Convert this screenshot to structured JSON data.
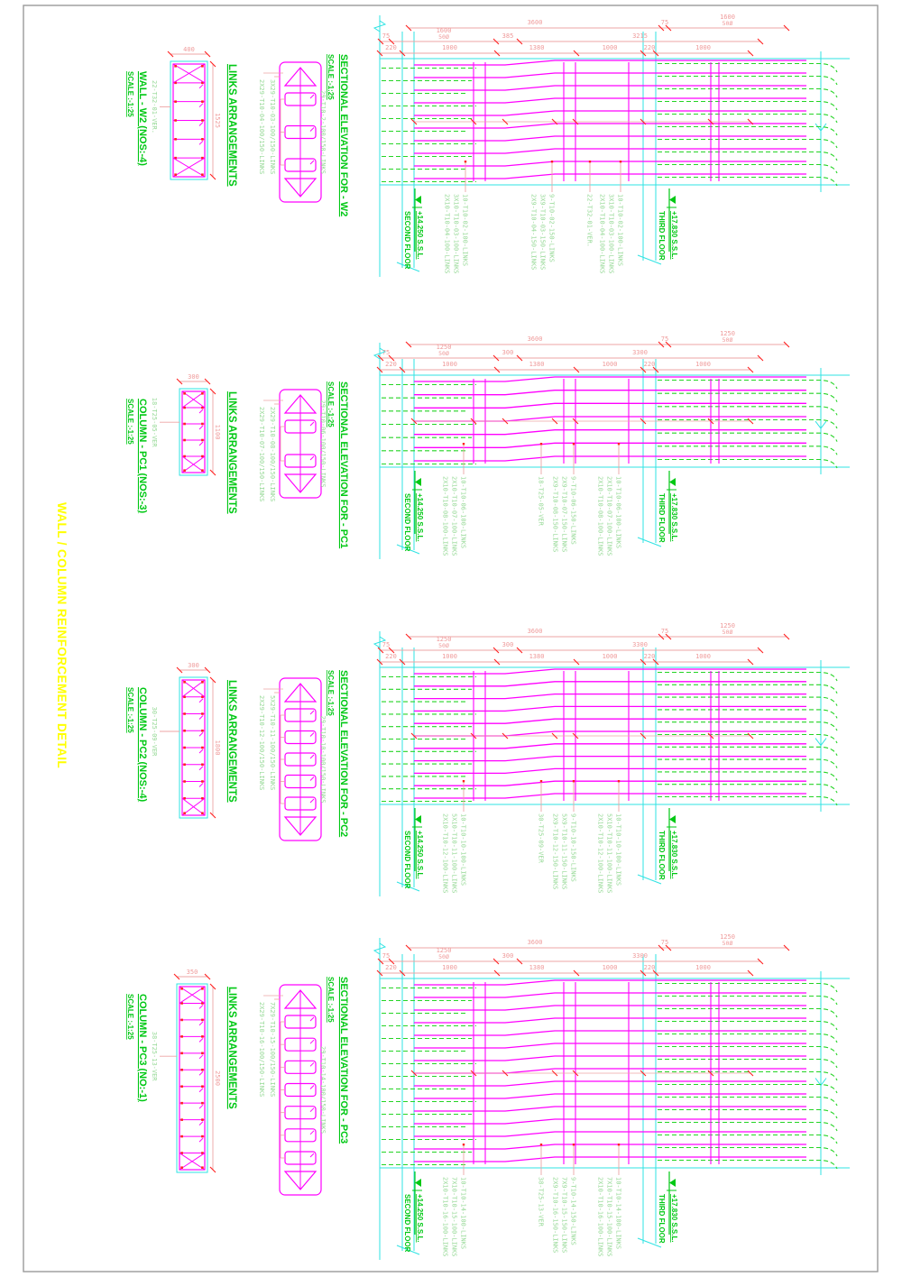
{
  "drawing_title": "WALL / COLUMN REINFORCEMENT DETAIL",
  "colors": {
    "magenta": "#ff00ff",
    "cyan": "#2fe3e3",
    "green_title": "#00c814",
    "green_pale": "#96d996",
    "green_dash": "#25d425",
    "red": "#ff2020",
    "red_pale": "#eda4a4",
    "dim_text": "#ef9a9a",
    "yellow": "#ffff00",
    "border": "#9a9a9a"
  },
  "floor_markers": {
    "lower": {
      "level": "+14.250 S.S.L.",
      "name": "SECOND FLOOR"
    },
    "upper": {
      "level": "+17.830 S.S.L.",
      "name": "THIRD FLOOR"
    }
  },
  "sections": [
    {
      "id": "w2",
      "title": "WALL - W2  (NOS:-4)",
      "scale": "SCALE :-1:25",
      "elevation_title": "SECTIONAL ELEVATION FOR - W2",
      "links_title": "LINKS ARRANGEMENTS",
      "cross_section": {
        "width": "400",
        "length": "1525",
        "ver_label": "22-T32-01-VER.",
        "cells": 6
      },
      "links": {
        "main_label": "29-T10-2-100/150-LINKS",
        "mid_label": "3X29-T10-03-100/150-LINKS",
        "end_label": "2X29-T10-04-100/150-LINKS"
      },
      "dims": {
        "row_a": [
          "3600",
          "75",
          "1600 50Ø"
        ],
        "row_b": [
          "75",
          "1600 50Ø",
          "385",
          "3215"
        ],
        "row_c": [
          "220",
          "1000",
          "1380",
          "1000",
          "220",
          "1000"
        ]
      },
      "annotations": [
        {
          "lines": [
            "10-T10-02-100-LINKS",
            "3X10-T10-03-100-LINKS",
            "2X10-T10-04-100-LINKS"
          ]
        },
        {
          "lines": [
            "9-T10-02-150-LINKS",
            "3X9-T10-03-150-LINKS",
            "2X9-T10-04-150-LINKS"
          ]
        },
        {
          "lines": [
            "22-T32-01-VER."
          ]
        },
        {
          "lines": [
            "10-T10-02-100-LINKS",
            "3X10-T10-03-100-LINKS",
            "2X10-T10-04-100-LINKS"
          ]
        }
      ]
    },
    {
      "id": "pc1",
      "title": "COLUMN - PC1  (NOS:-3)",
      "scale": "SCALE :-1:25",
      "elevation_title": "SECTIONAL ELEVATION FOR - PC1",
      "links_title": "LINKS ARRANGEMENTS",
      "cross_section": {
        "width": "300",
        "length": "1100",
        "ver_label": "18-T25-05-VER",
        "cells": 5
      },
      "links": {
        "main_label": "29-T10-06-100/150-LINKS",
        "mid_label": "2X29-T10-08-100/150-LINKS",
        "end_label": "2X29-T10-07-100/150-LINKS"
      },
      "dims": {
        "row_a": [
          "3600",
          "75",
          "1250 50Ø"
        ],
        "row_b": [
          "75",
          "1250 50Ø",
          "300",
          "3300"
        ],
        "row_c": [
          "220",
          "1000",
          "1380",
          "1000",
          "220",
          "1000"
        ]
      },
      "annotations": [
        {
          "lines": [
            "10-T10-06-100-LINKS",
            "2X10-T10-07-100-LINKS",
            "2X10-T10-08-100-LINKS"
          ]
        },
        {
          "lines": [
            "18-T25-05-VER"
          ]
        },
        {
          "lines": [
            "9-T10-06-150-LINKS",
            "2X9-T10-07-150-LINKS",
            "2X9-T10-08-150-LINKS"
          ]
        },
        {
          "lines": [
            "10-T10-06-100-LINKS",
            "2X10-T10-07-100-LINKS",
            "2X10-T10-08-100-LINKS"
          ]
        }
      ]
    },
    {
      "id": "pc2",
      "title": "COLUMN - PC2  (NOS:-4)",
      "scale": "SCALE :-1:25",
      "elevation_title": "SECTIONAL ELEVATION FOR - PC2",
      "links_title": "LINKS ARRANGEMENTS",
      "cross_section": {
        "width": "300",
        "length": "1800",
        "ver_label": "30-T25-09-VER",
        "cells": 8
      },
      "links": {
        "main_label": "29-T10-10-100/150-LINKS",
        "mid_label": "5X29-T10-11-100/150-LINKS",
        "end_label": "2X29-T10-12-100/150-LINKS"
      },
      "dims": {
        "row_a": [
          "3600",
          "75",
          "1250 50Ø"
        ],
        "row_b": [
          "75",
          "1250 50Ø",
          "300",
          "3300"
        ],
        "row_c": [
          "220",
          "1000",
          "1380",
          "1000",
          "220",
          "1000"
        ]
      },
      "annotations": [
        {
          "lines": [
            "10-T10-10-100-LINKS",
            "5X10-T10-11-100-LINKS",
            "2X10-T10-12-100-LINKS"
          ]
        },
        {
          "lines": [
            "30-T25-09-VER"
          ]
        },
        {
          "lines": [
            "9-T10-10-150-LINKS",
            "5X9-T10-11-150-LINKS",
            "2X9-T10-12-150-LINKS"
          ]
        },
        {
          "lines": [
            "10-T10-10-100-LINKS",
            "5X10-T10-11-100-LINKS",
            "2X10-T10-12-100-LINKS"
          ]
        }
      ]
    },
    {
      "id": "pc3",
      "title": "COLUMN - PC3  (NO:-1)",
      "scale": "SCALE :-1:25",
      "elevation_title": "SECTIONAL ELEVATION FOR - PC3",
      "links_title": "LINKS ARRANGEMENTS",
      "cross_section": {
        "width": "350",
        "length": "2500",
        "ver_label": "38-T25-13-VER",
        "cells": 11
      },
      "links": {
        "main_label": "29-T10-14-100/150-LINKS",
        "mid_label": "7X29-T10-15-100/150-LINKS",
        "end_label": "2X29-T10-16-100/150-LINKS"
      },
      "dims": {
        "row_a": [
          "3600",
          "75",
          "1250 50Ø"
        ],
        "row_b": [
          "75",
          "1250 50Ø",
          "300",
          "3300"
        ],
        "row_c": [
          "220",
          "1000",
          "1380",
          "1000",
          "220",
          "1000"
        ]
      },
      "annotations": [
        {
          "lines": [
            "10-T10-14-100-LINKS",
            "7X10-T10-15-100-LINKS",
            "2X10-T10-16-100-LINKS"
          ]
        },
        {
          "lines": [
            "38-T25-13-VER"
          ]
        },
        {
          "lines": [
            "9-T10-14-150-LINKS",
            "7X9-T10-15-150-LINKS",
            "2X9-T10-16-150-LINKS"
          ]
        },
        {
          "lines": [
            "10-T10-14-100-LINKS",
            "7X10-T10-15-100-LINKS",
            "2X10-T10-16-100-LINKS"
          ]
        }
      ]
    }
  ]
}
